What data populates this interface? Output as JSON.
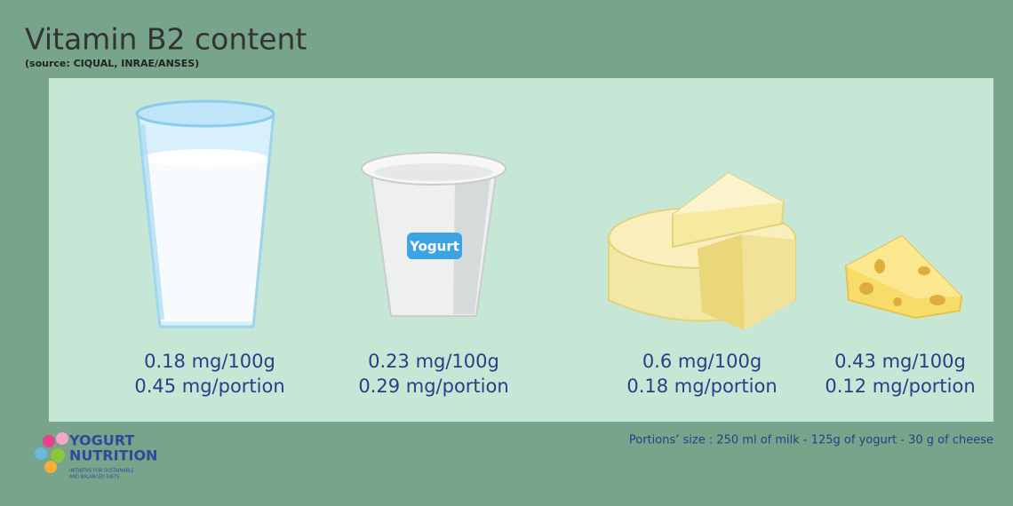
{
  "header": {
    "title": "Vitamin B2 content",
    "source": "(source: CIQUAL, INRAE/ANSES)"
  },
  "yogurt_cup_label": "Yogurt",
  "items": [
    {
      "per_100g": "0.18 mg/100g",
      "per_portion": "0.45 mg/portion"
    },
    {
      "per_100g": "0.23 mg/100g",
      "per_portion": "0.29 mg/portion"
    },
    {
      "per_100g": "0.6 mg/100g",
      "per_portion": "0.18 mg/portion"
    },
    {
      "per_100g": "0.43 mg/100g",
      "per_portion": "0.12 mg/portion"
    }
  ],
  "footer": {
    "note": "Portions’ size : 250 ml of milk - 125g of yogurt - 30 g of cheese",
    "logo": {
      "line1": "YOGURT",
      "line2": "NUTRITION",
      "tagline1": "INITIATIVE FOR SUSTAINABLE",
      "tagline2": "AND BALANCED DIETS"
    }
  }
}
